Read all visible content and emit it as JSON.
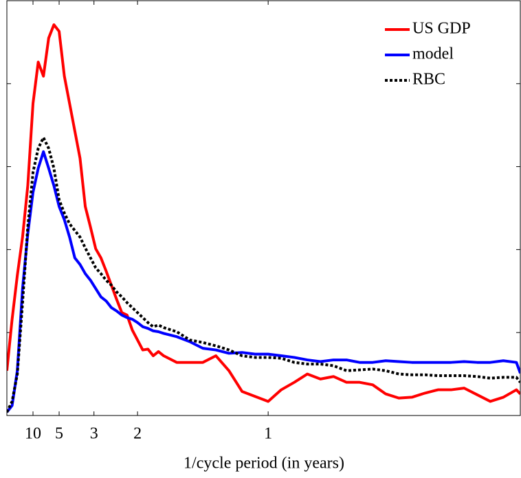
{
  "chart_data": {
    "type": "line",
    "xlabel": "1/cycle period (in years)",
    "x": [
      0,
      0.02,
      0.04,
      0.06,
      0.08,
      0.1,
      0.12,
      0.14,
      0.16,
      0.18,
      0.2,
      0.22,
      0.24,
      0.26,
      0.28,
      0.3,
      0.32,
      0.34,
      0.36,
      0.38,
      0.4,
      0.42,
      0.44,
      0.46,
      0.48,
      0.5,
      0.52,
      0.54,
      0.56,
      0.58,
      0.6,
      0.65,
      0.7,
      0.75,
      0.8,
      0.85,
      0.9,
      0.95,
      1.0,
      1.05,
      1.1,
      1.15,
      1.2,
      1.25,
      1.3,
      1.35,
      1.4,
      1.45,
      1.5,
      1.55,
      1.6,
      1.65,
      1.7,
      1.75,
      1.8,
      1.85,
      1.9,
      1.95,
      1.965
    ],
    "series": [
      {
        "name": "US GDP",
        "color": "#ff0000",
        "style": "solid",
        "values": [
          0.54,
          1.16,
          1.69,
          2.15,
          2.77,
          3.76,
          4.26,
          4.09,
          4.55,
          4.71,
          4.63,
          4.09,
          3.76,
          3.43,
          3.1,
          2.52,
          2.27,
          2.01,
          1.9,
          1.74,
          1.57,
          1.4,
          1.24,
          1.21,
          1.03,
          0.91,
          0.79,
          0.8,
          0.72,
          0.77,
          0.72,
          0.64,
          0.64,
          0.64,
          0.72,
          0.54,
          0.29,
          0.23,
          0.17,
          0.31,
          0.4,
          0.5,
          0.44,
          0.47,
          0.4,
          0.4,
          0.37,
          0.26,
          0.21,
          0.22,
          0.27,
          0.31,
          0.31,
          0.33,
          0.25,
          0.17,
          0.22,
          0.31,
          0.26
        ]
      },
      {
        "name": "model",
        "color": "#0000ff",
        "style": "solid",
        "values": [
          0.04,
          0.12,
          0.54,
          1.53,
          2.19,
          2.69,
          2.98,
          3.18,
          2.98,
          2.77,
          2.52,
          2.36,
          2.15,
          1.9,
          1.82,
          1.71,
          1.63,
          1.53,
          1.43,
          1.38,
          1.3,
          1.26,
          1.21,
          1.18,
          1.16,
          1.12,
          1.07,
          1.05,
          1.02,
          1.01,
          0.99,
          0.95,
          0.89,
          0.81,
          0.79,
          0.75,
          0.76,
          0.74,
          0.74,
          0.72,
          0.7,
          0.67,
          0.65,
          0.67,
          0.67,
          0.64,
          0.64,
          0.66,
          0.65,
          0.64,
          0.64,
          0.64,
          0.64,
          0.65,
          0.64,
          0.64,
          0.66,
          0.64,
          0.51
        ]
      },
      {
        "name": "RBC",
        "color": "#000000",
        "style": "dotted",
        "values": [
          0.04,
          0.17,
          0.5,
          1.36,
          2.27,
          2.93,
          3.22,
          3.35,
          3.22,
          2.98,
          2.6,
          2.44,
          2.31,
          2.23,
          2.15,
          2.02,
          1.9,
          1.78,
          1.71,
          1.63,
          1.57,
          1.49,
          1.43,
          1.36,
          1.3,
          1.24,
          1.18,
          1.12,
          1.07,
          1.09,
          1.06,
          1.01,
          0.91,
          0.88,
          0.84,
          0.79,
          0.72,
          0.7,
          0.7,
          0.69,
          0.64,
          0.62,
          0.62,
          0.6,
          0.54,
          0.55,
          0.56,
          0.54,
          0.5,
          0.49,
          0.49,
          0.48,
          0.48,
          0.48,
          0.47,
          0.45,
          0.46,
          0.46,
          0.4
        ]
      }
    ],
    "xlim": [
      0,
      1.965
    ],
    "ylim": [
      0,
      5
    ],
    "xticks": [
      {
        "value": 0.1,
        "label": "10"
      },
      {
        "value": 0.2,
        "label": "5"
      },
      {
        "value": 0.3333,
        "label": "3"
      },
      {
        "value": 0.5,
        "label": "2"
      },
      {
        "value": 1,
        "label": "1"
      }
    ],
    "yticks": [
      1,
      2,
      3,
      4
    ],
    "legend": "top-right"
  }
}
